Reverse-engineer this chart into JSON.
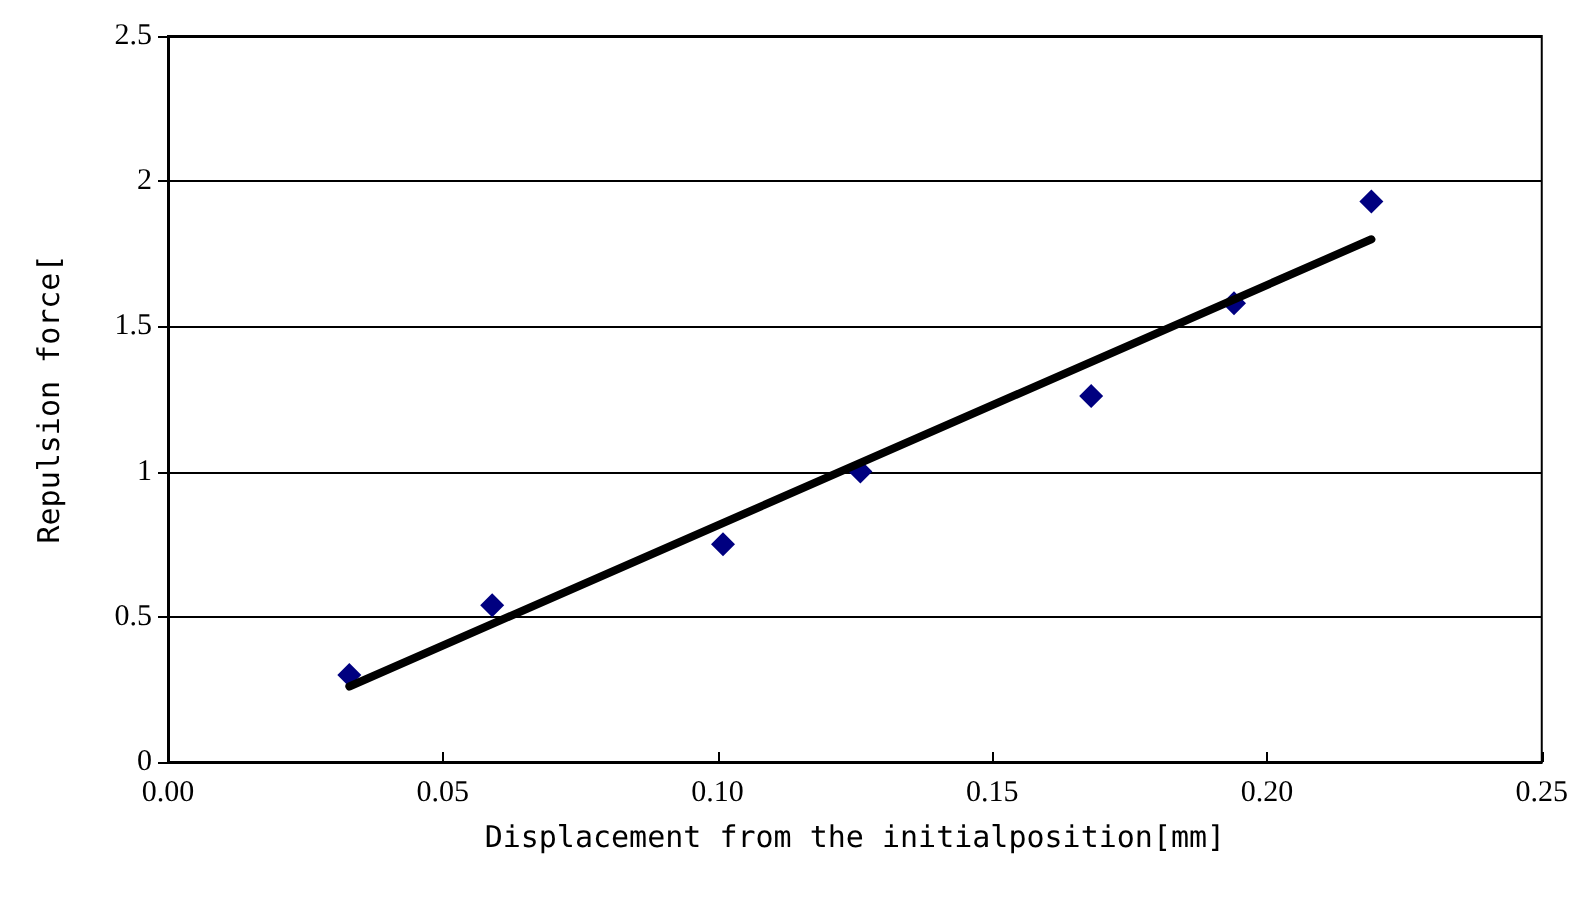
{
  "chart_data": {
    "type": "scatter",
    "xlabel": "Displacement from the initialposition[mm]",
    "ylabel": "Repulsion force[",
    "xlim": [
      0,
      0.25
    ],
    "xticks": [
      {
        "value": 0,
        "label": "0.00"
      },
      {
        "value": 0.05,
        "label": "0.05"
      },
      {
        "value": 0.1,
        "label": "0.10"
      },
      {
        "value": 0.15,
        "label": "0.15"
      },
      {
        "value": 0.2,
        "label": "0.20"
      },
      {
        "value": 0.25,
        "label": "0.25"
      }
    ],
    "ylim": [
      0,
      2.5
    ],
    "yticks": [
      0,
      0.5,
      1,
      1.5,
      2,
      2.5
    ],
    "grid": "y",
    "series": [
      {
        "color": "#000080",
        "marker": "diamond",
        "x": [
          0.033,
          0.059,
          0.101,
          0.126,
          0.168,
          0.194,
          0.219
        ],
        "values": [
          0.3,
          0.54,
          0.75,
          1.0,
          1.26,
          1.58,
          1.93
        ]
      },
      {
        "type": "line",
        "color": "#000000",
        "marker": "none",
        "line_style": "solid",
        "x": [
          0.033,
          0.219
        ],
        "values": [
          0.26,
          1.8
        ]
      }
    ]
  }
}
